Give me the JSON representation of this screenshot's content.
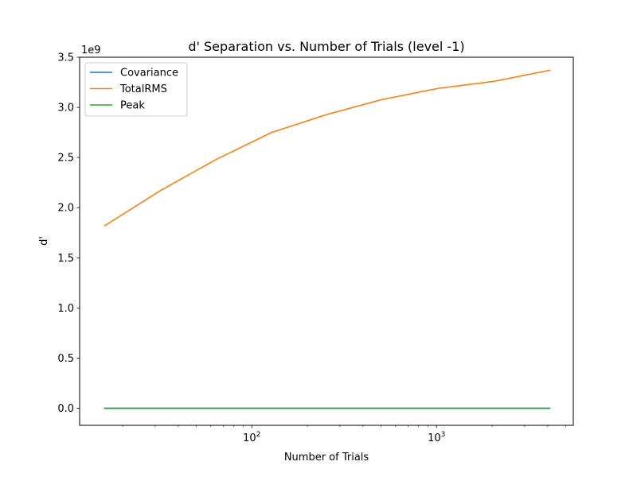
{
  "chart_data": {
    "type": "line",
    "title": "d' Separation vs. Number of Trials (level -1)",
    "xlabel": "Number of Trials",
    "ylabel": "d'",
    "x_scale": "log",
    "xlim": [
      11.7,
      5500
    ],
    "ylim": [
      -0.17,
      3.5
    ],
    "y_offset_label": "1e9",
    "x_ticks": [
      {
        "value": 100,
        "base": "10",
        "exp": "2"
      },
      {
        "value": 1000,
        "base": "10",
        "exp": "3"
      }
    ],
    "y_ticks": [
      {
        "value": 0.0,
        "label": "0.0"
      },
      {
        "value": 0.5,
        "label": "0.5"
      },
      {
        "value": 1.0,
        "label": "1.0"
      },
      {
        "value": 1.5,
        "label": "1.5"
      },
      {
        "value": 2.0,
        "label": "2.0"
      },
      {
        "value": 2.5,
        "label": "2.5"
      },
      {
        "value": 3.0,
        "label": "3.0"
      },
      {
        "value": 3.5,
        "label": "3.5"
      }
    ],
    "x": [
      16,
      32,
      64,
      128,
      256,
      512,
      1024,
      2048,
      4096
    ],
    "series": [
      {
        "name": "Covariance",
        "color": "#1f77b4",
        "values": [
          0,
          0,
          0,
          0,
          0,
          0,
          0,
          0,
          0
        ]
      },
      {
        "name": "TotalRMS",
        "color": "#ff7f0e",
        "values": [
          1.82,
          2.17,
          2.48,
          2.75,
          2.93,
          3.08,
          3.19,
          3.26,
          3.37
        ]
      },
      {
        "name": "Peak",
        "color": "#2ca02c",
        "values": [
          0,
          0,
          0,
          0,
          0,
          0,
          0,
          0,
          0
        ]
      }
    ],
    "grid": false,
    "legend_position": "top-left"
  }
}
